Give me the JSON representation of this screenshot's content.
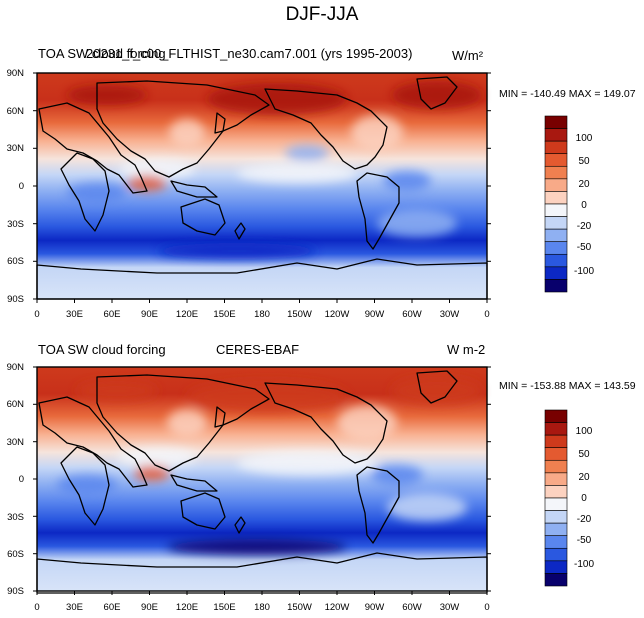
{
  "figure_title": "DJF-JJA",
  "palette": [
    "#08006c",
    "#0c28c4",
    "#2a58e0",
    "#5a86ee",
    "#8fb0f2",
    "#c4d6f6",
    "#f4f6fa",
    "#fcd2c0",
    "#f8aa88",
    "#f08050",
    "#e45a30",
    "#ce3a1c",
    "#a81810",
    "#780000"
  ],
  "colorbar_levels": [
    "-100",
    "-50",
    "-20",
    "0",
    "20",
    "50",
    "100"
  ],
  "panels": [
    {
      "left_title": "TOA SW cloud forcing",
      "center_title": "20231_f_c00_FLTHIST_ne30.cam7.001 (yrs 1995-2003)",
      "units": "W/m²",
      "min_max": "MIN = -140.49 MAX = 149.07",
      "lat_labels": [
        "90N",
        "60N",
        "30N",
        "0",
        "30S",
        "60S",
        "90S"
      ],
      "lon_labels": [
        "0",
        "30E",
        "60E",
        "90E",
        "120E",
        "150E",
        "180",
        "150W",
        "120W",
        "90W",
        "60W",
        "30W",
        "0"
      ]
    },
    {
      "left_title": "TOA SW cloud forcing",
      "center_title": "CERES-EBAF",
      "units": "W m-2",
      "min_max": "MIN = -153.88 MAX = 143.59",
      "lat_labels": [
        "90N",
        "60N",
        "30N",
        "0",
        "30S",
        "60S",
        "90S"
      ],
      "lon_labels": [
        "0",
        "30E",
        "60E",
        "90E",
        "120E",
        "150E",
        "180",
        "150W",
        "120W",
        "90W",
        "60W",
        "30W",
        "0"
      ]
    }
  ]
}
